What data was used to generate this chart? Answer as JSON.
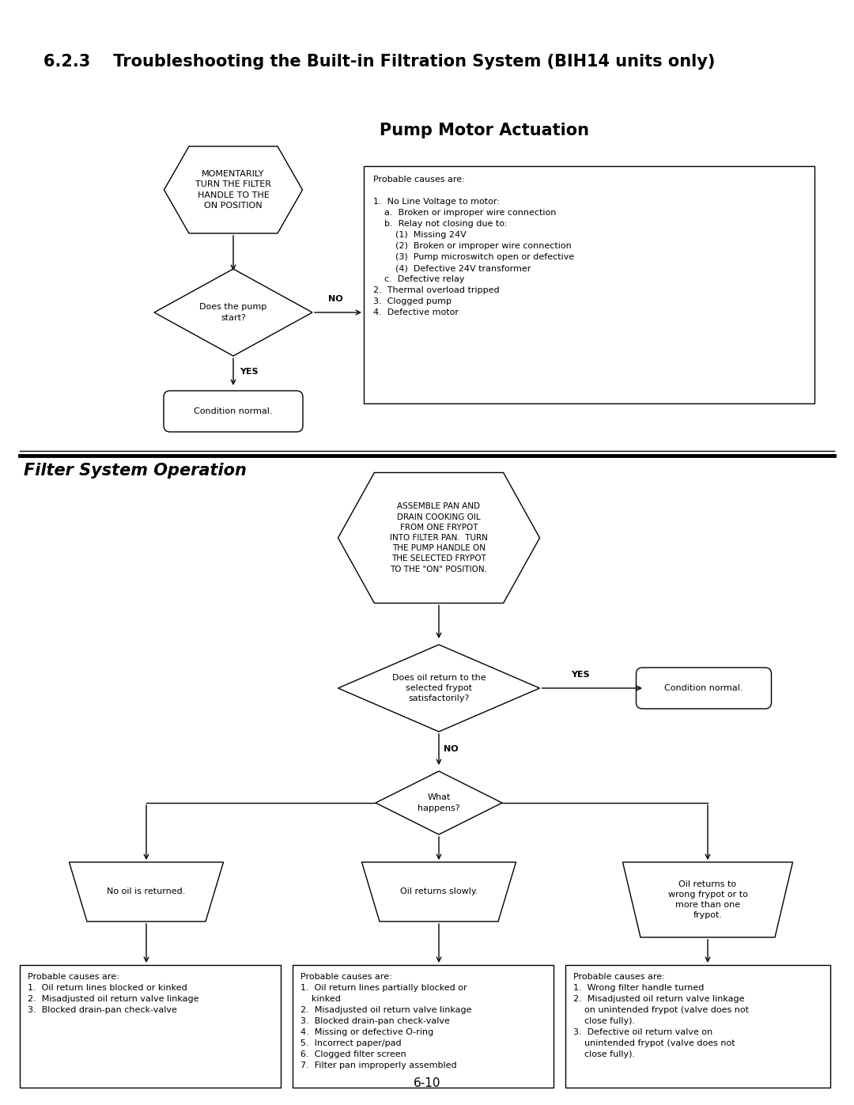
{
  "title": "6.2.3    Troubleshooting the Built-in Filtration System (BIH14 units only)",
  "section1_title": "Pump Motor Actuation",
  "section2_title": "Filter System Operation",
  "page_number": "6-10",
  "bg_color": "#ffffff",
  "text_color": "#000000",
  "pump_motor": {
    "hex_text": "MOMENTARILY\nTURN THE FILTER\nHANDLE TO THE\nON POSITION",
    "diamond_text": "Does the pump\nstart?",
    "no_label": "NO",
    "yes_label": "YES",
    "terminal_text": "Condition normal.",
    "box_text": "Probable causes are:\n\n1.  No Line Voltage to motor:\n    a.  Broken or improper wire connection\n    b.  Relay not closing due to:\n        (1)  Missing 24V\n        (2)  Broken or improper wire connection\n        (3)  Pump microswitch open or defective\n        (4)  Defective 24V transformer\n    c.  Defective relay\n2.  Thermal overload tripped\n3.  Clogged pump\n4.  Defective motor"
  },
  "filter_system": {
    "hex_text": "ASSEMBLE PAN AND\nDRAIN COOKING OIL\nFROM ONE FRYPOT\nINTO FILTER PAN.  TURN\nTHE PUMP HANDLE ON\nTHE SELECTED FRYPOT\nTO THE \"ON\" POSITION.",
    "diamond1_text": "Does oil return to the\nselected frypot\nsatisfactorily?",
    "yes_label": "YES",
    "no_label": "NO",
    "condition_normal": "Condition normal.",
    "diamond2_text": "What\nhappens?",
    "trap1_text": "No oil is returned.",
    "trap2_text": "Oil returns slowly.",
    "trap3_text": "Oil returns to\nwrong frypot or to\nmore than one\nfrypot.",
    "box1_text": "Probable causes are:\n1.  Oil return lines blocked or kinked\n2.  Misadjusted oil return valve linkage\n3.  Blocked drain-pan check-valve",
    "box2_text": "Probable causes are:\n1.  Oil return lines partially blocked or\n    kinked\n2.  Misadjusted oil return valve linkage\n3.  Blocked drain-pan check-valve\n4.  Missing or defective O-ring\n5.  Incorrect paper/pad\n6.  Clogged filter screen\n7.  Filter pan improperly assembled",
    "box3_text": "Probable causes are:\n1.  Wrong filter handle turned\n2.  Misadjusted oil return valve linkage\n    on unintended frypot (valve does not\n    close fully).\n3.  Defective oil return valve on\n    unintended frypot (valve does not\n    close fully)."
  }
}
